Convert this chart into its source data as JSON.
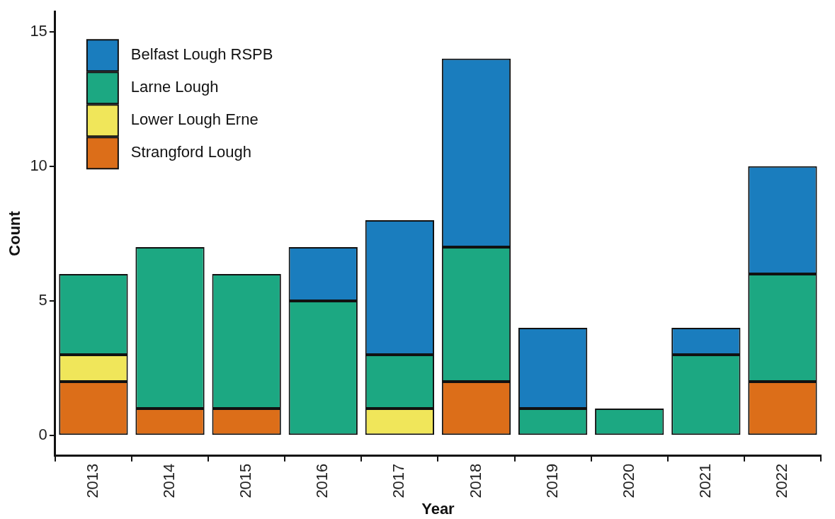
{
  "chart_data": {
    "type": "bar",
    "stacked": true,
    "xlabel": "Year",
    "ylabel": "Count",
    "categories": [
      "2013",
      "2014",
      "2015",
      "2016",
      "2017",
      "2018",
      "2019",
      "2020",
      "2021",
      "2022"
    ],
    "series": [
      {
        "name": "Strangford Lough",
        "color": "#dc6e19",
        "values": [
          2,
          1,
          1,
          0,
          0,
          2,
          0,
          0,
          0,
          2
        ]
      },
      {
        "name": "Lower Lough Erne",
        "color": "#f0e65a",
        "values": [
          1,
          0,
          0,
          0,
          1,
          0,
          0,
          0,
          0,
          0
        ]
      },
      {
        "name": "Larne Lough",
        "color": "#1ca882",
        "values": [
          3,
          6,
          5,
          5,
          2,
          5,
          1,
          1,
          3,
          4
        ]
      },
      {
        "name": "Belfast Lough RSPB",
        "color": "#1a7dbe",
        "values": [
          0,
          0,
          0,
          2,
          5,
          7,
          3,
          0,
          1,
          4
        ]
      }
    ],
    "ylim": [
      -0.75,
      15.75
    ],
    "yticks": [
      0,
      5,
      10,
      15
    ],
    "grid": false,
    "legend": "top left"
  }
}
